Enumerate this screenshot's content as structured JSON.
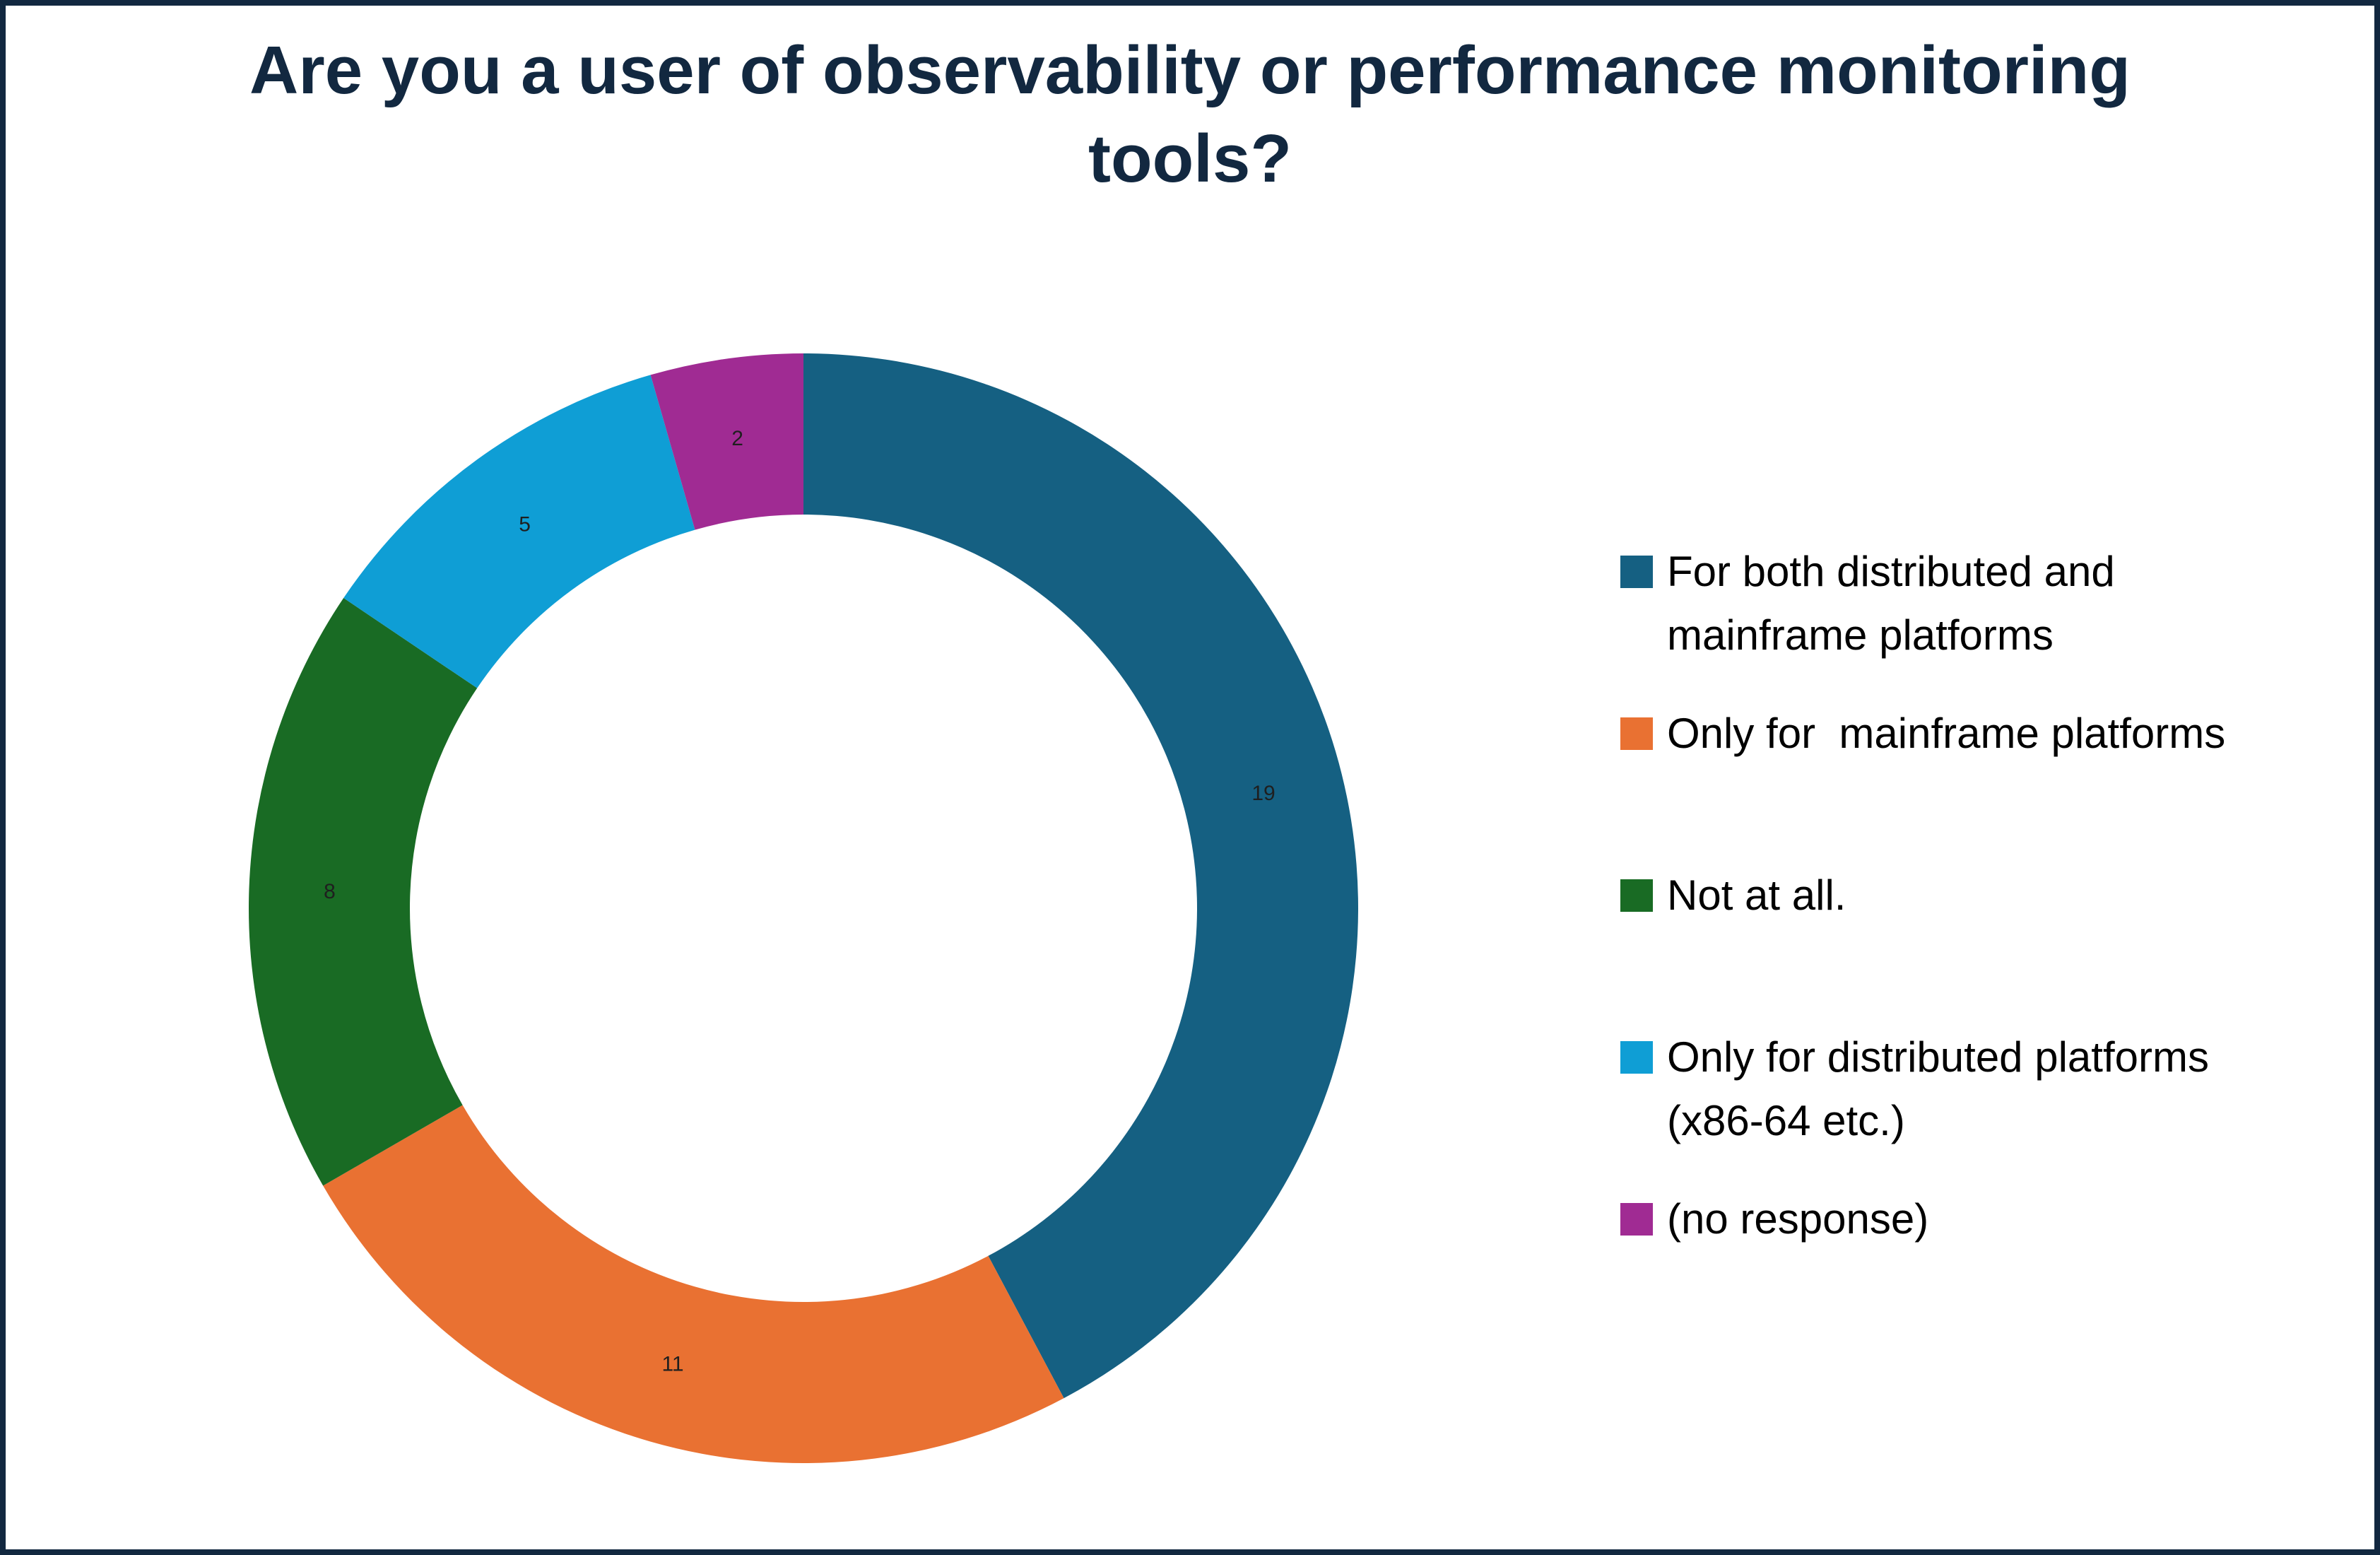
{
  "page": {
    "background_color": "#FFFFFF",
    "border_color": "#122840",
    "title_color": "#122840"
  },
  "chart_data": {
    "type": "pie",
    "subtype": "donut",
    "title": "Are you a user of observability or performance monitoring\ntools?",
    "categories": [
      "For both distributed and mainframe platforms",
      "Only for  mainframe platforms",
      "Not at all.",
      "Only for distributed platforms (x86-64 etc.)",
      "(no response)"
    ],
    "legend_labels": [
      "For both distributed and\nmainframe platforms",
      "Only for  mainframe platforms",
      "Not at all.",
      "Only for distributed platforms\n(x86-64 etc.)",
      "(no response)"
    ],
    "values": [
      19,
      11,
      8,
      5,
      2
    ],
    "data_labels": [
      "19",
      "11",
      "8",
      "5",
      "2"
    ],
    "total": 45,
    "colors": [
      "#156082",
      "#E97132",
      "#196B24",
      "#0F9ED5",
      "#A02B93"
    ],
    "start_angle_deg": 0,
    "direction": "clockwise",
    "legend_position": "right",
    "label_color": "#1F1F1F"
  }
}
